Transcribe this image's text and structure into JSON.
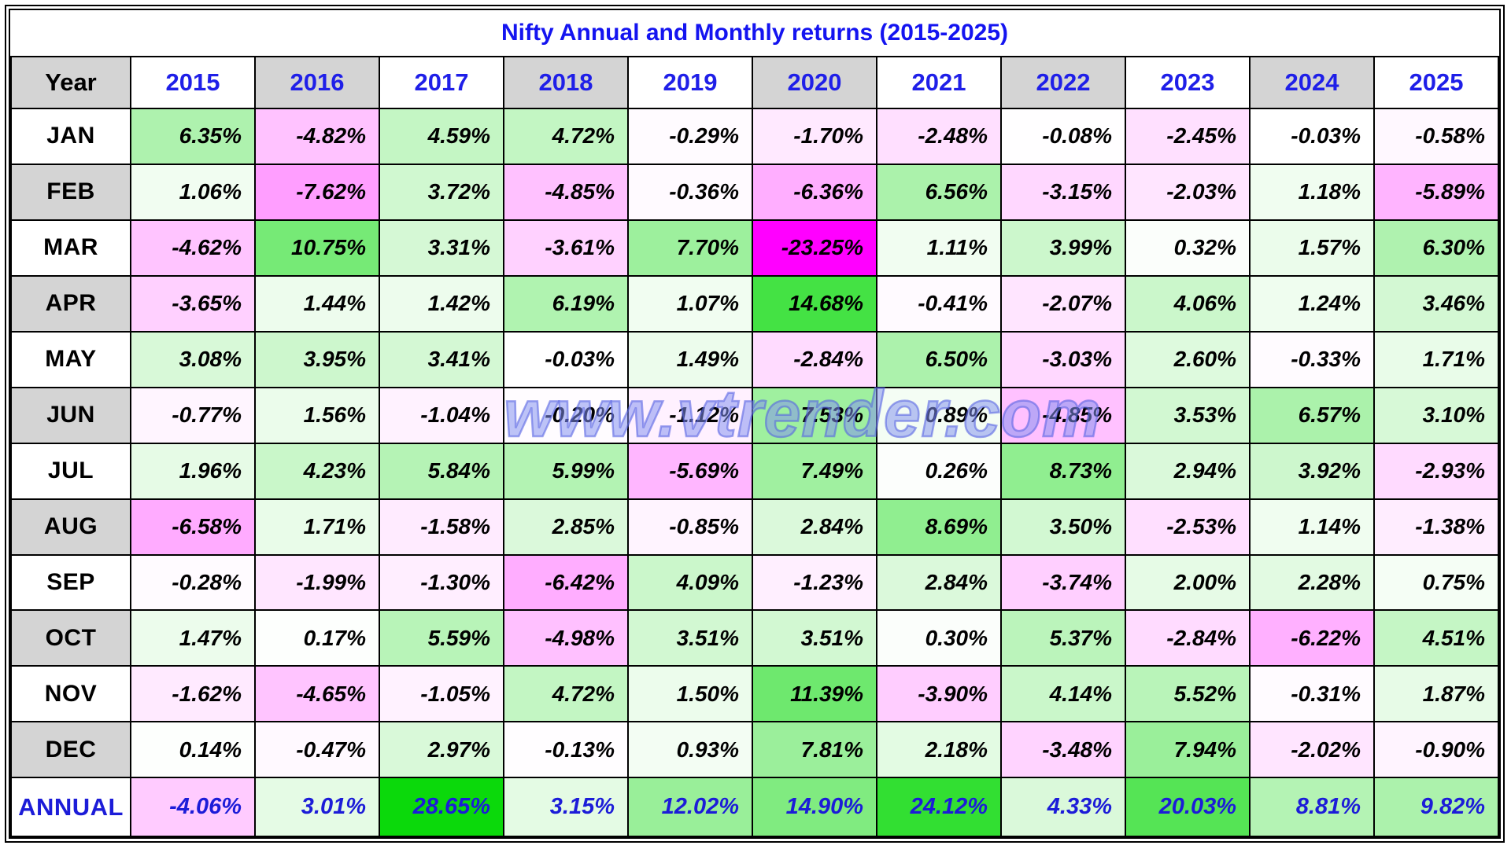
{
  "chart_data": {
    "type": "heatmap",
    "title": "Nifty Annual and Monthly returns (2015-2025)",
    "watermark": "www.vtrender.com",
    "row_header": "Year",
    "unit": "%",
    "columns": [
      "2015",
      "2016",
      "2017",
      "2018",
      "2019",
      "2020",
      "2021",
      "2022",
      "2023",
      "2024",
      "2025"
    ],
    "rows": [
      "JAN",
      "FEB",
      "MAR",
      "APR",
      "MAY",
      "JUN",
      "JUL",
      "AUG",
      "SEP",
      "OCT",
      "NOV",
      "DEC",
      "ANNUAL"
    ],
    "values": [
      [
        6.35,
        -4.82,
        4.59,
        4.72,
        -0.29,
        -1.7,
        -2.48,
        -0.08,
        -2.45,
        -0.03,
        -0.58
      ],
      [
        1.06,
        -7.62,
        3.72,
        -4.85,
        -0.36,
        -6.36,
        6.56,
        -3.15,
        -2.03,
        1.18,
        -5.89
      ],
      [
        -4.62,
        10.75,
        3.31,
        -3.61,
        7.7,
        -23.25,
        1.11,
        3.99,
        0.32,
        1.57,
        6.3
      ],
      [
        -3.65,
        1.44,
        1.42,
        6.19,
        1.07,
        14.68,
        -0.41,
        -2.07,
        4.06,
        1.24,
        3.46
      ],
      [
        3.08,
        3.95,
        3.41,
        -0.03,
        1.49,
        -2.84,
        6.5,
        -3.03,
        2.6,
        -0.33,
        1.71
      ],
      [
        -0.77,
        1.56,
        -1.04,
        -0.2,
        -1.12,
        7.53,
        0.89,
        -4.85,
        3.53,
        6.57,
        3.1
      ],
      [
        1.96,
        4.23,
        5.84,
        5.99,
        -5.69,
        7.49,
        0.26,
        8.73,
        2.94,
        3.92,
        -2.93
      ],
      [
        -6.58,
        1.71,
        -1.58,
        2.85,
        -0.85,
        2.84,
        8.69,
        3.5,
        -2.53,
        1.14,
        -1.38
      ],
      [
        -0.28,
        -1.99,
        -1.3,
        -6.42,
        4.09,
        -1.23,
        2.84,
        -3.74,
        2.0,
        2.28,
        0.75
      ],
      [
        1.47,
        0.17,
        5.59,
        -4.98,
        3.51,
        3.51,
        0.3,
        5.37,
        -2.84,
        -6.22,
        4.51
      ],
      [
        -1.62,
        -4.65,
        -1.05,
        4.72,
        1.5,
        11.39,
        -3.9,
        4.14,
        5.52,
        -0.31,
        1.87
      ],
      [
        0.14,
        -0.47,
        2.97,
        -0.13,
        0.93,
        7.81,
        2.18,
        -3.48,
        7.94,
        -2.02,
        -0.9
      ],
      [
        -4.06,
        3.01,
        28.65,
        3.15,
        12.02,
        14.9,
        24.12,
        4.33,
        20.03,
        8.81,
        9.82
      ]
    ],
    "color_scale": {
      "positive_color": "#00d700",
      "negative_color": "#ff00ff",
      "neutral_color": "#ffffff",
      "monthly_positive_max": 20,
      "annual_positive_max": 30,
      "negative_max": 20
    },
    "colors": {
      "header_grey": "#d4d4d4",
      "title_blue": "#1414f0",
      "year_blue": "#1f1fe8",
      "annual_blue": "#1c1cd8",
      "border_black": "#000000",
      "watermark_blue": "#525fe1"
    },
    "layout": {
      "grid": true,
      "legend": false,
      "value_alignment": "right"
    }
  }
}
